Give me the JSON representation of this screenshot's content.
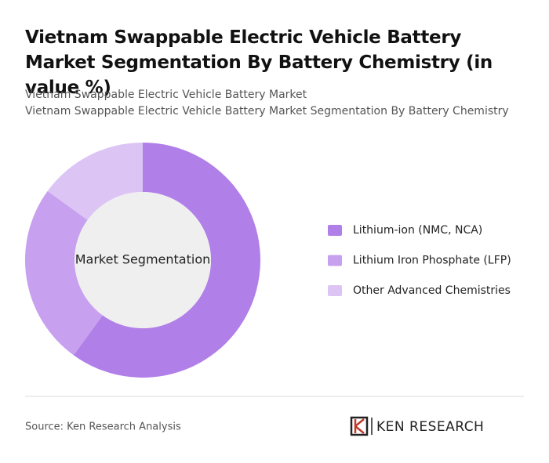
{
  "chart_data": {
    "type": "pie",
    "title": "Vietnam Swappable Electric Vehicle Battery Market Segmentation By Battery Chemistry (in value %)",
    "subtitles": [
      "Vietnam Swappable Electric Vehicle Battery Market",
      "Vietnam Swappable Electric Vehicle Battery Market Segmentation By Battery Chemistry"
    ],
    "center_label": "Market Segmentation",
    "categories": [
      "Lithium-ion (NMC, NCA)",
      "Lithium Iron Phosphate (LFP)",
      "Other Advanced Chemistries"
    ],
    "values": [
      60,
      25,
      15
    ],
    "colors": [
      "#b07fe8",
      "#c7a0ef",
      "#dcc4f5"
    ],
    "legend": "right"
  },
  "footer": {
    "source": "Source: Ken Research Analysis",
    "brand": "KEN RESEARCH"
  }
}
